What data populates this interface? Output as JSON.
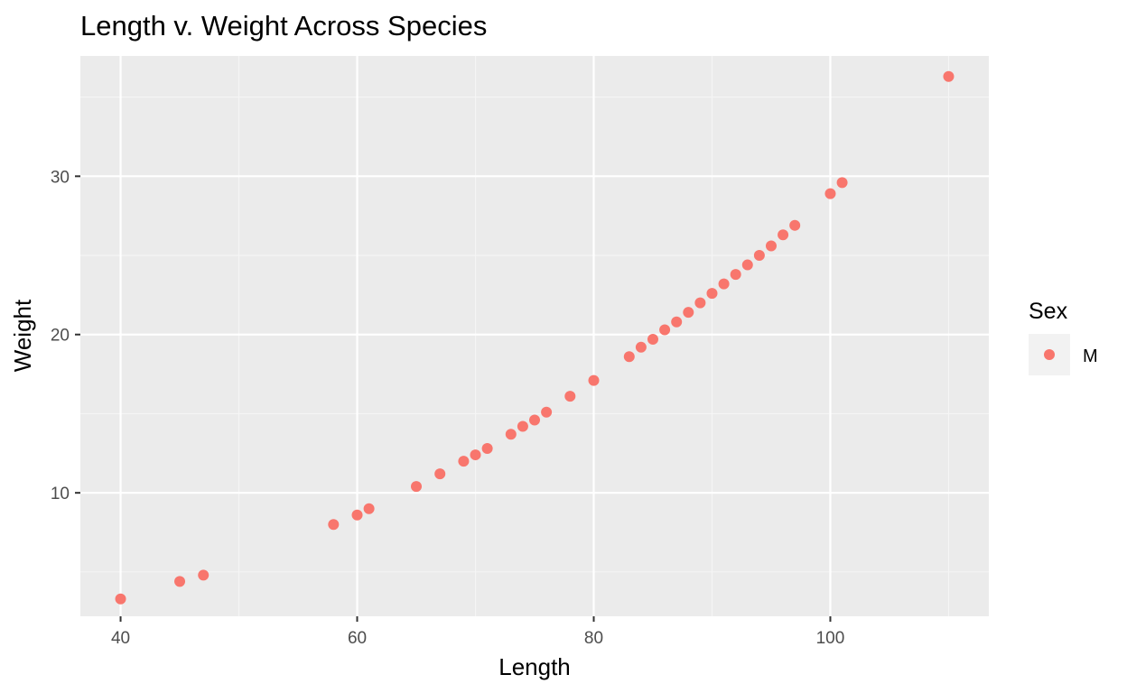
{
  "chart_data": {
    "type": "scatter",
    "title": "Length v. Weight Across Species",
    "xlabel": "Length",
    "ylabel": "Weight",
    "xlim": [
      36.6,
      113.4
    ],
    "ylim": [
      2.2,
      37.6
    ],
    "x_ticks": [
      40,
      60,
      80,
      100
    ],
    "y_ticks": [
      10,
      20,
      30
    ],
    "x_minor": [
      50,
      70,
      90,
      110
    ],
    "y_minor": [
      5,
      15,
      25,
      35
    ],
    "grid": true,
    "legend": {
      "title": "Sex",
      "position": "right",
      "entries": [
        {
          "label": "M",
          "color": "#F8766D"
        }
      ]
    },
    "series": [
      {
        "name": "M",
        "color": "#F8766D",
        "points": [
          [
            40,
            3.3
          ],
          [
            45,
            4.4
          ],
          [
            47,
            4.8
          ],
          [
            58,
            8.0
          ],
          [
            60,
            8.6
          ],
          [
            61,
            9.0
          ],
          [
            65,
            10.4
          ],
          [
            67,
            11.2
          ],
          [
            69,
            12.0
          ],
          [
            70,
            12.4
          ],
          [
            71,
            12.8
          ],
          [
            73,
            13.7
          ],
          [
            74,
            14.2
          ],
          [
            75,
            14.6
          ],
          [
            76,
            15.1
          ],
          [
            78,
            16.1
          ],
          [
            80,
            17.1
          ],
          [
            83,
            18.6
          ],
          [
            84,
            19.2
          ],
          [
            85,
            19.7
          ],
          [
            86,
            20.3
          ],
          [
            87,
            20.8
          ],
          [
            88,
            21.4
          ],
          [
            89,
            22.0
          ],
          [
            90,
            22.6
          ],
          [
            91,
            23.2
          ],
          [
            92,
            23.8
          ],
          [
            93,
            24.4
          ],
          [
            94,
            25.0
          ],
          [
            95,
            25.6
          ],
          [
            96,
            26.3
          ],
          [
            97,
            26.9
          ],
          [
            100,
            28.9
          ],
          [
            101,
            29.6
          ],
          [
            110,
            36.3
          ]
        ]
      }
    ]
  },
  "colors": {
    "panel_background": "#EBEBEB",
    "grid_major": "#FFFFFF",
    "grid_minor": "#F5F5F5",
    "point": "#F8766D",
    "legend_key_background": "#F2F2F2"
  }
}
